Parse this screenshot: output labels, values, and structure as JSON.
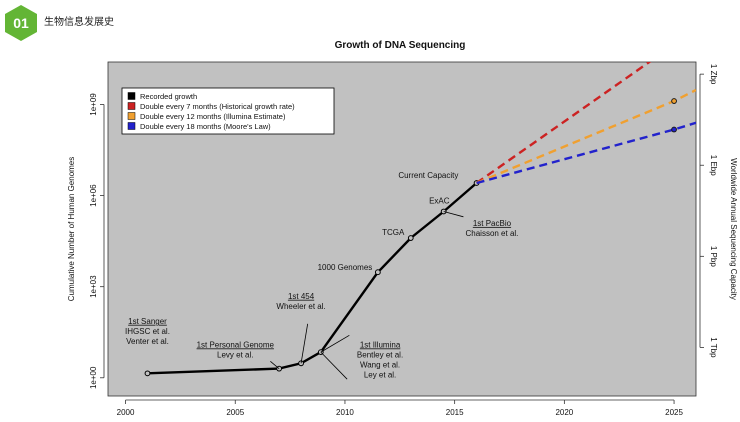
{
  "header": {
    "badge_number": "01",
    "title": "生物信息发展史",
    "accent_color": "#63b535"
  },
  "chart_data": {
    "type": "line",
    "title": "Growth of DNA Sequencing",
    "ylabel": "Cumulative Number of Human Genomes",
    "ylabel_right": "Worldwide Annual Sequencing Capacity",
    "xlim": [
      1999.2,
      2026.0
    ],
    "ylim_log10": [
      -0.6,
      10.4
    ],
    "y_scale": "log",
    "x_ticks": [
      2000,
      2005,
      2010,
      2015,
      2020,
      2025
    ],
    "y_ticks": [
      {
        "value": 1,
        "label": "1e+00"
      },
      {
        "value": 1000,
        "label": "1e+03"
      },
      {
        "value": 1000000,
        "label": "1e+06"
      },
      {
        "value": 1000000000,
        "label": "1e+09"
      }
    ],
    "right_ticks": [
      {
        "genomes": 10,
        "label": "1 Tbp"
      },
      {
        "genomes": 10000,
        "label": "1 Pbp"
      },
      {
        "genomes": 10000000,
        "label": "1 Ebp"
      },
      {
        "genomes": 10000000000,
        "label": "1 Zbp"
      }
    ],
    "background_color": "#c1c1c1",
    "legend_position": "top-left",
    "legend": [
      {
        "label": "Recorded growth",
        "color": "#000000"
      },
      {
        "label": "Double every 7 months (Historical growth rate)",
        "color": "#cc2222"
      },
      {
        "label": "Double every 12 months (Illumina Estimate)",
        "color": "#f0a030"
      },
      {
        "label": "Double every 18 months (Moore's Law)",
        "color": "#2222cc"
      }
    ],
    "series": [
      {
        "name": "Recorded growth",
        "color": "#000000",
        "x": [
          2001.0,
          2007.0,
          2008.0,
          2008.9,
          2011.5,
          2013.0,
          2014.5,
          2016.0
        ],
        "y": [
          1.4,
          2.0,
          3.0,
          7.0,
          3000,
          40000,
          300000,
          2600000
        ]
      },
      {
        "name": "Double every 7 months (Historical growth rate)",
        "color": "#cc2222",
        "x": [
          2016.0,
          2026.0
        ],
        "y": [
          2600000,
          300000000000
        ]
      },
      {
        "name": "Double every 12 months (Illumina Estimate)",
        "color": "#f0a030",
        "x": [
          2016.0,
          2025.0,
          2026.0
        ],
        "y": [
          2600000,
          1300000000,
          3000000000
        ]
      },
      {
        "name": "Double every 18 months (Moore's Law)",
        "color": "#2222cc",
        "x": [
          2016.0,
          2025.0,
          2026.0
        ],
        "y": [
          2600000,
          150000000,
          250000000
        ]
      }
    ],
    "annotations": [
      {
        "lines": [
          "1st Sanger",
          "IHGSC et al.",
          "Venter et al."
        ],
        "underline_first": true,
        "x": 2001.0,
        "y": 60.0
      },
      {
        "lines": [
          "1st Personal Genome",
          "Levy et al."
        ],
        "underline_first": true,
        "x": 2005.0,
        "y": 10.0
      },
      {
        "lines": [
          "1st 454",
          "Wheeler et al."
        ],
        "underline_first": true,
        "x": 2008.0,
        "y": 400.0
      },
      {
        "lines": [
          "1st Illumina",
          "Bentley et al.",
          "Wang et al.",
          "Ley et al."
        ],
        "underline_first": true,
        "x": 2011.6,
        "y": 10.0
      },
      {
        "lines": [
          "1000 Genomes"
        ],
        "underline_first": false,
        "x": 2010.0,
        "y": 3500.0
      },
      {
        "lines": [
          "TCGA"
        ],
        "underline_first": false,
        "x": 2012.2,
        "y": 50000.0
      },
      {
        "lines": [
          "ExAC"
        ],
        "underline_first": false,
        "x": 2014.3,
        "y": 550000.0
      },
      {
        "lines": [
          "1st PacBio",
          "Chaisson et al."
        ],
        "underline_first": true,
        "x": 2016.7,
        "y": 100000.0
      },
      {
        "lines": [
          "Current Capacity"
        ],
        "underline_first": false,
        "x": 2013.8,
        "y": 3800000.0
      }
    ]
  }
}
